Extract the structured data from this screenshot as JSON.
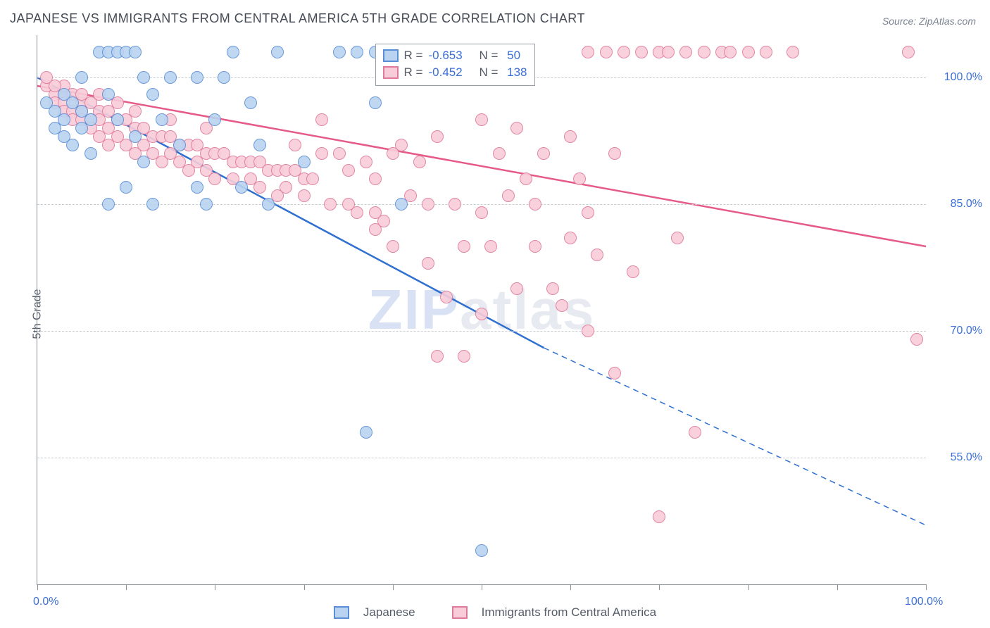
{
  "title": "JAPANESE VS IMMIGRANTS FROM CENTRAL AMERICA 5TH GRADE CORRELATION CHART",
  "source": "Source: ZipAtlas.com",
  "ylabel": "5th Grade",
  "watermark_prefix": "ZIP",
  "watermark_suffix": "atlas",
  "colors": {
    "series1_fill": "#b9d3f0",
    "series1_stroke": "#5a8fd6",
    "series1_line": "#2e6fd0",
    "series2_fill": "#f8cdd9",
    "series2_stroke": "#e07a9a",
    "series2_line": "#e65a87",
    "grid": "#c7cbd2",
    "axis": "#888f99",
    "tick_text": "#3b6fd6",
    "title_text": "#444b55",
    "label_text": "#555c68"
  },
  "chart": {
    "type": "scatter-correlation",
    "xlim": [
      0,
      100
    ],
    "ylim": [
      40,
      105
    ],
    "x_ticks": [
      0,
      10,
      20,
      30,
      40,
      50,
      60,
      70,
      80,
      90,
      100
    ],
    "x_tick_labels": {
      "0": "0.0%",
      "100": "100.0%"
    },
    "y_gridlines": [
      55,
      70,
      85,
      100
    ],
    "y_tick_labels": {
      "55": "55.0%",
      "70": "70.0%",
      "85": "85.0%",
      "100": "100.0%"
    },
    "point_radius": 9,
    "line_width": 2.5,
    "background_color": "#ffffff"
  },
  "series": [
    {
      "id": "japanese",
      "label": "Japanese",
      "R": "-0.653",
      "N": "50",
      "fill": "#b9d3f0",
      "stroke": "#5a8fd6",
      "line_color": "#2e6fd0",
      "trend": {
        "x1": 0,
        "y1": 100,
        "x2_solid": 57,
        "y2_solid": 68,
        "x2": 100,
        "y2": 47
      },
      "points": [
        [
          1,
          97
        ],
        [
          2,
          96
        ],
        [
          2,
          94
        ],
        [
          3,
          98
        ],
        [
          3,
          95
        ],
        [
          3,
          93
        ],
        [
          4,
          97
        ],
        [
          4,
          92
        ],
        [
          5,
          96
        ],
        [
          5,
          94
        ],
        [
          5,
          100
        ],
        [
          6,
          95
        ],
        [
          6,
          91
        ],
        [
          7,
          103
        ],
        [
          8,
          103
        ],
        [
          8,
          98
        ],
        [
          8,
          85
        ],
        [
          9,
          103
        ],
        [
          9,
          95
        ],
        [
          10,
          103
        ],
        [
          10,
          87
        ],
        [
          11,
          103
        ],
        [
          11,
          93
        ],
        [
          12,
          100
        ],
        [
          12,
          90
        ],
        [
          13,
          98
        ],
        [
          13,
          85
        ],
        [
          14,
          95
        ],
        [
          15,
          100
        ],
        [
          16,
          92
        ],
        [
          18,
          87
        ],
        [
          18,
          100
        ],
        [
          19,
          85
        ],
        [
          20,
          95
        ],
        [
          22,
          103
        ],
        [
          23,
          87
        ],
        [
          24,
          97
        ],
        [
          25,
          92
        ],
        [
          26,
          85
        ],
        [
          27,
          103
        ],
        [
          30,
          90
        ],
        [
          34,
          103
        ],
        [
          36,
          103
        ],
        [
          38,
          103
        ],
        [
          41,
          85
        ],
        [
          42,
          103
        ],
        [
          37,
          58
        ],
        [
          50,
          44
        ],
        [
          38,
          97
        ],
        [
          21,
          100
        ]
      ]
    },
    {
      "id": "central_america",
      "label": "Immigrants from Central America",
      "R": "-0.452",
      "N": "138",
      "fill": "#f8cdd9",
      "stroke": "#e07a9a",
      "line_color": "#e65a87",
      "trend": {
        "x1": 0,
        "y1": 99,
        "x2_solid": 100,
        "y2_solid": 80,
        "x2": 100,
        "y2": 80
      },
      "points": [
        [
          1,
          99
        ],
        [
          2,
          98
        ],
        [
          2,
          97
        ],
        [
          3,
          98
        ],
        [
          3,
          97
        ],
        [
          3,
          96
        ],
        [
          4,
          98
        ],
        [
          4,
          96
        ],
        [
          4,
          95
        ],
        [
          5,
          97
        ],
        [
          5,
          96
        ],
        [
          5,
          95
        ],
        [
          6,
          97
        ],
        [
          6,
          95
        ],
        [
          6,
          94
        ],
        [
          7,
          96
        ],
        [
          7,
          95
        ],
        [
          7,
          93
        ],
        [
          8,
          96
        ],
        [
          8,
          94
        ],
        [
          8,
          92
        ],
        [
          9,
          95
        ],
        [
          9,
          93
        ],
        [
          10,
          95
        ],
        [
          10,
          92
        ],
        [
          11,
          94
        ],
        [
          11,
          91
        ],
        [
          12,
          94
        ],
        [
          12,
          92
        ],
        [
          13,
          93
        ],
        [
          13,
          91
        ],
        [
          14,
          93
        ],
        [
          14,
          90
        ],
        [
          15,
          93
        ],
        [
          15,
          91
        ],
        [
          16,
          92
        ],
        [
          16,
          90
        ],
        [
          17,
          92
        ],
        [
          17,
          89
        ],
        [
          18,
          92
        ],
        [
          18,
          90
        ],
        [
          19,
          91
        ],
        [
          19,
          89
        ],
        [
          20,
          91
        ],
        [
          20,
          88
        ],
        [
          21,
          91
        ],
        [
          22,
          90
        ],
        [
          22,
          88
        ],
        [
          23,
          90
        ],
        [
          24,
          90
        ],
        [
          24,
          88
        ],
        [
          25,
          90
        ],
        [
          25,
          87
        ],
        [
          26,
          89
        ],
        [
          27,
          89
        ],
        [
          27,
          86
        ],
        [
          28,
          89
        ],
        [
          28,
          87
        ],
        [
          29,
          89
        ],
        [
          30,
          88
        ],
        [
          30,
          86
        ],
        [
          31,
          88
        ],
        [
          32,
          91
        ],
        [
          33,
          85
        ],
        [
          34,
          91
        ],
        [
          35,
          85
        ],
        [
          36,
          84
        ],
        [
          37,
          90
        ],
        [
          38,
          88
        ],
        [
          38,
          82
        ],
        [
          39,
          83
        ],
        [
          40,
          91
        ],
        [
          40,
          80
        ],
        [
          41,
          92
        ],
        [
          42,
          86
        ],
        [
          43,
          90
        ],
        [
          44,
          85
        ],
        [
          44,
          78
        ],
        [
          45,
          93
        ],
        [
          46,
          74
        ],
        [
          47,
          85
        ],
        [
          48,
          80
        ],
        [
          48,
          67
        ],
        [
          50,
          95
        ],
        [
          50,
          84
        ],
        [
          50,
          72
        ],
        [
          51,
          80
        ],
        [
          52,
          91
        ],
        [
          53,
          86
        ],
        [
          54,
          75
        ],
        [
          54,
          94
        ],
        [
          55,
          88
        ],
        [
          56,
          80
        ],
        [
          57,
          91
        ],
        [
          58,
          75
        ],
        [
          59,
          73
        ],
        [
          60,
          93
        ],
        [
          60,
          81
        ],
        [
          61,
          88
        ],
        [
          62,
          84
        ],
        [
          62,
          103
        ],
        [
          63,
          79
        ],
        [
          64,
          103
        ],
        [
          65,
          91
        ],
        [
          65,
          65
        ],
        [
          66,
          103
        ],
        [
          67,
          77
        ],
        [
          68,
          103
        ],
        [
          70,
          103
        ],
        [
          70,
          48
        ],
        [
          71,
          103
        ],
        [
          72,
          81
        ],
        [
          73,
          103
        ],
        [
          74,
          58
        ],
        [
          75,
          103
        ],
        [
          77,
          103
        ],
        [
          78,
          103
        ],
        [
          80,
          103
        ],
        [
          82,
          103
        ],
        [
          85,
          103
        ],
        [
          98,
          103
        ],
        [
          99,
          69
        ],
        [
          62,
          70
        ],
        [
          45,
          67
        ],
        [
          56,
          85
        ],
        [
          32,
          95
        ],
        [
          35,
          89
        ],
        [
          38,
          84
        ],
        [
          29,
          92
        ],
        [
          19,
          94
        ],
        [
          15,
          95
        ],
        [
          11,
          96
        ],
        [
          9,
          97
        ],
        [
          7,
          98
        ],
        [
          5,
          98
        ],
        [
          3,
          99
        ],
        [
          2,
          99
        ],
        [
          1,
          100
        ]
      ]
    }
  ],
  "legend_top": {
    "R_label": "R =",
    "N_label": "N ="
  },
  "legend_bottom": [
    {
      "series": 0
    },
    {
      "series": 1
    }
  ]
}
